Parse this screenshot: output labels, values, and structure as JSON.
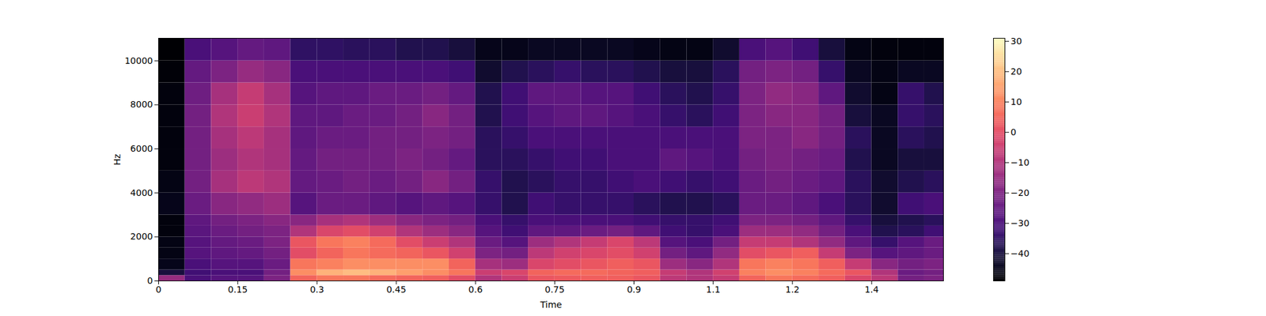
{
  "chart_data": {
    "type": "heatmap",
    "x_label": "Time",
    "y_label": "Hz",
    "color": "magma",
    "xlim": [
      0,
      1.486
    ],
    "ylim": [
      0,
      11025
    ],
    "xticks": [
      0,
      0.15,
      0.3,
      0.45,
      0.6,
      0.75,
      0.9,
      {
        "value": 1.05,
        "label": "1.1"
      },
      1.2,
      {
        "value": 1.35,
        "label": "1.4"
      }
    ],
    "yticks": [
      0,
      2000,
      4000,
      6000,
      8000,
      10000
    ],
    "time_edges": [
      0,
      0.05,
      0.1,
      0.15,
      0.2,
      0.25,
      0.3,
      0.35,
      0.4,
      0.45,
      0.5,
      0.55,
      0.6,
      0.65,
      0.7,
      0.75,
      0.8,
      0.85,
      0.9,
      0.95,
      1.0,
      1.05,
      1.1,
      1.15,
      1.2,
      1.25,
      1.3,
      1.35,
      1.4,
      1.45,
      1.486
    ],
    "freq_edges": [
      0,
      250,
      500,
      1000,
      1500,
      2000,
      2500,
      3000,
      4000,
      5000,
      6000,
      7000,
      8000,
      9000,
      10000,
      11025
    ],
    "cells": [
      [
        -15,
        -40,
        -45,
        -46,
        -46,
        -47,
        -47,
        -45,
        -46,
        -47,
        -47,
        -47,
        -47,
        -48,
        -49
      ],
      [
        -30,
        -32,
        -30,
        -28,
        -28,
        -27,
        -26,
        -24,
        -22,
        -22,
        -22,
        -22,
        -23,
        -25,
        -30
      ],
      [
        -28,
        -30,
        -28,
        -26,
        -25,
        -24,
        -22,
        -18,
        -12,
        -14,
        -12,
        -10,
        -12,
        -20,
        -28
      ],
      [
        -28,
        -30,
        -28,
        -25,
        -24,
        -22,
        -20,
        -16,
        -8,
        -10,
        -8,
        -5,
        -6,
        -15,
        -25
      ],
      [
        -20,
        -22,
        -24,
        -22,
        -20,
        -20,
        -18,
        -14,
        -10,
        -12,
        -12,
        -10,
        -12,
        -18,
        -26
      ],
      [
        5,
        12,
        8,
        0,
        2,
        -10,
        -18,
        -28,
        -25,
        -25,
        -26,
        -26,
        -28,
        -30,
        -35
      ],
      [
        8,
        18,
        10,
        5,
        8,
        -2,
        -12,
        -24,
        -24,
        -22,
        -24,
        -26,
        -26,
        -30,
        -35
      ],
      [
        8,
        20,
        12,
        8,
        10,
        0,
        -10,
        -24,
        -22,
        -22,
        -24,
        -24,
        -26,
        -30,
        -36
      ],
      [
        6,
        18,
        12,
        6,
        6,
        -4,
        -14,
        -26,
        -24,
        -22,
        -22,
        -24,
        -24,
        -30,
        -36
      ],
      [
        5,
        15,
        12,
        5,
        0,
        -10,
        -18,
        -28,
        -22,
        -20,
        -22,
        -22,
        -24,
        -30,
        -38
      ],
      [
        4,
        12,
        12,
        2,
        -5,
        -14,
        -20,
        -26,
        -18,
        -22,
        -20,
        -18,
        -22,
        -30,
        -38
      ],
      [
        0,
        8,
        5,
        -4,
        -10,
        -18,
        -22,
        -28,
        -22,
        -25,
        -22,
        -22,
        -25,
        -32,
        -40
      ],
      [
        -10,
        -5,
        -12,
        -20,
        -24,
        -28,
        -30,
        -34,
        -34,
        -36,
        -36,
        -38,
        -38,
        -42,
        -45
      ],
      [
        -5,
        -2,
        -14,
        -22,
        -28,
        -32,
        -34,
        -38,
        -38,
        -36,
        -34,
        -32,
        -32,
        -38,
        -45
      ],
      [
        2,
        5,
        -2,
        -8,
        -14,
        -26,
        -30,
        -32,
        -36,
        -34,
        -30,
        -28,
        -26,
        -36,
        -44
      ],
      [
        3,
        6,
        0,
        -4,
        -10,
        -26,
        -30,
        -34,
        -34,
        -32,
        -30,
        -26,
        -26,
        -34,
        -44
      ],
      [
        4,
        6,
        2,
        -2,
        -6,
        -24,
        -30,
        -34,
        -34,
        -32,
        -30,
        -26,
        -28,
        -36,
        -44
      ],
      [
        4,
        5,
        4,
        0,
        -2,
        -22,
        -30,
        -34,
        -32,
        -30,
        -30,
        -28,
        -28,
        -36,
        -44
      ],
      [
        2,
        4,
        2,
        -4,
        -8,
        -26,
        -32,
        -36,
        -30,
        -30,
        -30,
        -30,
        -32,
        -38,
        -45
      ],
      [
        -8,
        -6,
        -14,
        -22,
        -28,
        -32,
        -34,
        -38,
        -32,
        -26,
        -30,
        -34,
        -36,
        -40,
        -46
      ],
      [
        -10,
        -10,
        -18,
        -26,
        -30,
        -34,
        -34,
        -38,
        -34,
        -28,
        -30,
        -36,
        -38,
        -40,
        -46
      ],
      [
        -6,
        -4,
        -10,
        -16,
        -22,
        -30,
        -32,
        -36,
        -32,
        -30,
        -30,
        -32,
        -34,
        -36,
        -42
      ],
      [
        5,
        10,
        8,
        0,
        -6,
        -14,
        -20,
        -24,
        -24,
        -22,
        -20,
        -20,
        -20,
        -22,
        -30
      ],
      [
        8,
        12,
        10,
        2,
        -6,
        -14,
        -20,
        -24,
        -22,
        -20,
        -20,
        -18,
        -16,
        -20,
        -28
      ],
      [
        6,
        10,
        8,
        4,
        -10,
        -16,
        -22,
        -26,
        -24,
        -22,
        -18,
        -18,
        -18,
        -22,
        -32
      ],
      [
        4,
        6,
        4,
        -6,
        -16,
        -22,
        -26,
        -30,
        -26,
        -24,
        -22,
        -22,
        -26,
        -34,
        -40
      ],
      [
        -2,
        2,
        -6,
        -20,
        -26,
        -30,
        -34,
        -36,
        -36,
        -38,
        -36,
        -40,
        -42,
        -44,
        -46
      ],
      [
        -8,
        -10,
        -18,
        -28,
        -34,
        -38,
        -40,
        -42,
        -42,
        -44,
        -44,
        -44,
        -46,
        -46,
        -47
      ],
      [
        -22,
        -24,
        -22,
        -26,
        -28,
        -36,
        -38,
        -32,
        -38,
        -40,
        -36,
        -34,
        -34,
        -44,
        -47
      ],
      [
        -20,
        -22,
        -20,
        -24,
        -24,
        -32,
        -36,
        -30,
        -36,
        -40,
        -38,
        -36,
        -38,
        -44,
        -47
      ]
    ],
    "clim": [
      -49,
      31
    ],
    "cticks": [
      -40,
      -30,
      -20,
      -10,
      0,
      10,
      20,
      30
    ]
  }
}
